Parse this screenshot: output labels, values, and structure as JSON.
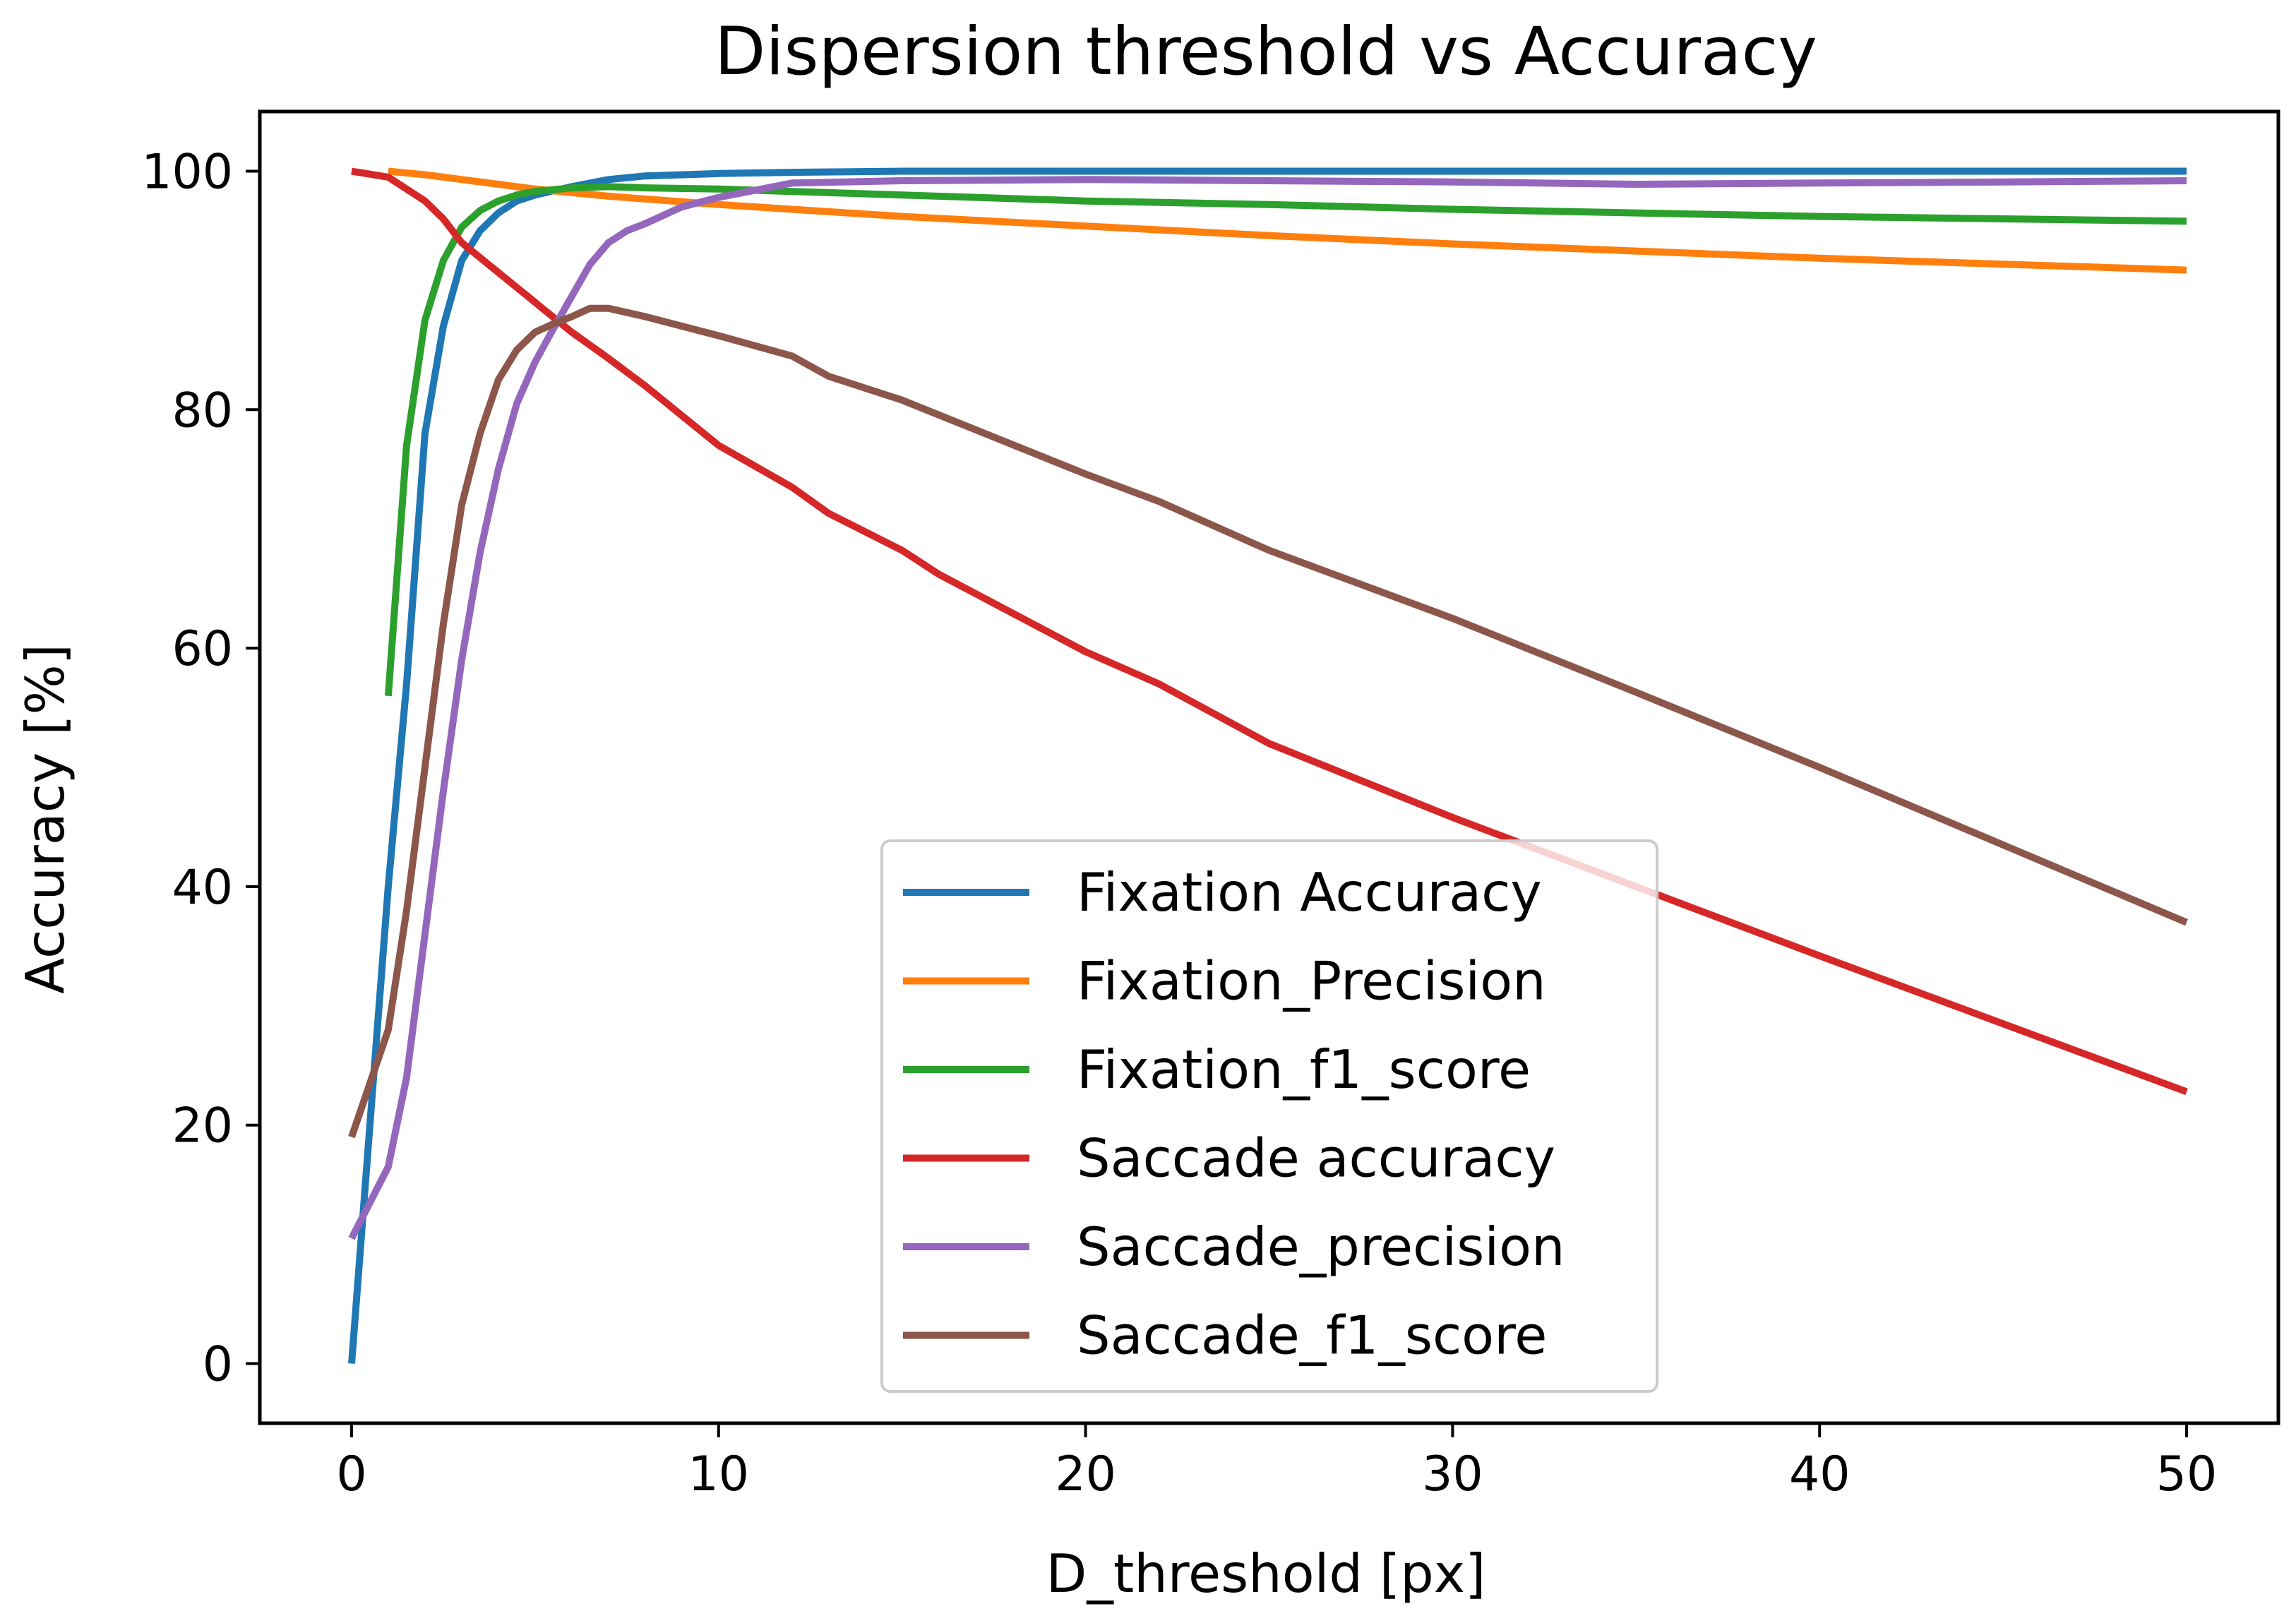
{
  "chart_data": {
    "type": "line",
    "title": "Dispersion threshold vs Accuracy",
    "xlabel": "D_threshold [px]",
    "ylabel": "Accuracy [%]",
    "xlim": [
      -2.5,
      52.5
    ],
    "ylim": [
      -5,
      105
    ],
    "xticks": [
      0,
      10,
      20,
      30,
      40,
      50
    ],
    "yticks": [
      0,
      20,
      40,
      60,
      80,
      100
    ],
    "xtick_labels": [
      "0",
      "10",
      "20",
      "30",
      "40",
      "50"
    ],
    "ytick_labels": [
      "0",
      "20",
      "40",
      "60",
      "80",
      "100"
    ],
    "grid": false,
    "legend_position": "lower-center",
    "series": [
      {
        "name": "Fixation Accuracy",
        "color": "#1f77b4",
        "x": [
          0,
          0.5,
          1,
          1.5,
          2,
          2.5,
          3,
          3.5,
          4,
          4.5,
          5,
          6,
          7,
          8,
          10,
          12,
          15,
          20,
          30,
          40,
          50
        ],
        "y": [
          0,
          20,
          40,
          57,
          78,
          87,
          92.5,
          95,
          96.5,
          97.5,
          98,
          98.7,
          99.3,
          99.6,
          99.8,
          99.9,
          100,
          100,
          100,
          100,
          100
        ]
      },
      {
        "name": "Fixation_Precision",
        "color": "#ff7f0e",
        "x": [
          1,
          2,
          3,
          4,
          5,
          7,
          10,
          12,
          15,
          20,
          25,
          30,
          35,
          40,
          45,
          50
        ],
        "y": [
          100,
          99.7,
          99.3,
          98.9,
          98.5,
          97.9,
          97.2,
          96.8,
          96.2,
          95.4,
          94.6,
          93.9,
          93.3,
          92.7,
          92.2,
          91.7
        ]
      },
      {
        "name": "Fixation_f1_score",
        "color": "#2ca02c",
        "x": [
          1,
          1.5,
          2,
          2.5,
          3,
          3.5,
          4,
          4.5,
          5,
          6,
          7,
          8,
          10,
          12,
          15,
          20,
          25,
          30,
          35,
          40,
          45,
          50
        ],
        "y": [
          56,
          77,
          87.5,
          92.5,
          95.3,
          96.7,
          97.5,
          98,
          98.3,
          98.6,
          98.7,
          98.6,
          98.5,
          98.3,
          98,
          97.5,
          97.2,
          96.8,
          96.5,
          96.2,
          96,
          95.8
        ]
      },
      {
        "name": "Saccade accuracy",
        "color": "#d62728",
        "x": [
          0,
          1,
          2,
          2.5,
          3,
          4,
          5,
          6,
          7,
          8,
          9,
          10,
          12,
          13,
          15,
          16,
          20,
          22,
          25,
          30,
          35,
          40,
          45,
          50
        ],
        "y": [
          100,
          99.5,
          97.5,
          96,
          94,
          91.5,
          89,
          86.5,
          84.3,
          82,
          79.5,
          77,
          73.5,
          71.3,
          68.2,
          66.2,
          59.7,
          57,
          52,
          45.8,
          40,
          34.2,
          28.5,
          22.8
        ]
      },
      {
        "name": "Saccade_precision",
        "color": "#9467bd",
        "x": [
          0,
          1,
          1.5,
          2,
          2.5,
          3,
          3.5,
          4,
          4.5,
          5,
          5.5,
          6,
          6.5,
          7,
          7.5,
          8,
          9,
          10,
          12,
          15,
          20,
          25,
          30,
          35,
          40,
          45,
          50
        ],
        "y": [
          10.5,
          16.5,
          24,
          36,
          48,
          59,
          68,
          75,
          80.5,
          84,
          86.8,
          89.5,
          92.2,
          94,
          95,
          95.6,
          97,
          97.8,
          99,
          99.2,
          99.3,
          99.2,
          99.1,
          98.9,
          99,
          99.1,
          99.2
        ]
      },
      {
        "name": "Saccade_f1_score",
        "color": "#8c564b",
        "x": [
          0,
          1,
          1.5,
          2,
          2.5,
          3,
          3.5,
          4,
          4.5,
          5,
          5.5,
          6,
          6.5,
          7,
          8,
          10,
          12,
          13,
          15,
          20,
          22,
          25,
          30,
          35,
          40,
          45,
          50
        ],
        "y": [
          19,
          28,
          38,
          50,
          62,
          72,
          78,
          82.5,
          85,
          86.5,
          87.2,
          87.8,
          88.5,
          88.5,
          87.8,
          86.2,
          84.5,
          82.8,
          80.8,
          74.6,
          72.3,
          68.2,
          62.5,
          56.3,
          50,
          43.5,
          37
        ]
      }
    ]
  }
}
